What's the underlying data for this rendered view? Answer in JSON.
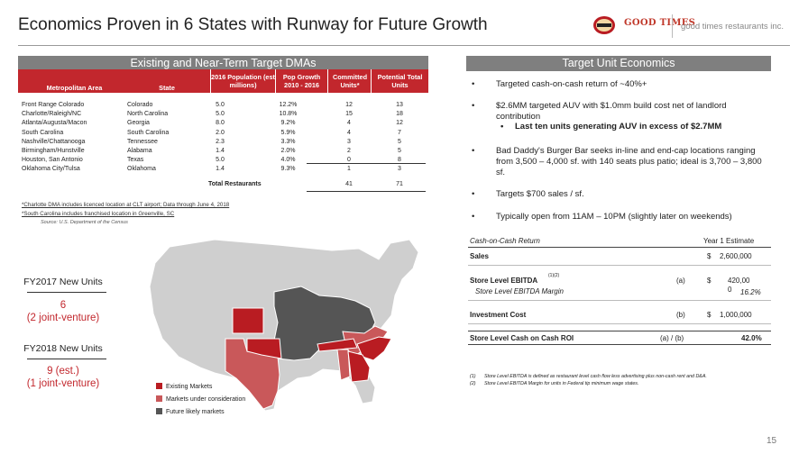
{
  "header": {
    "title": "Economics Proven in 6 States with Runway for Future Growth",
    "logo_primary": "GOOD TIMES",
    "company": "good times restaurants inc."
  },
  "dma_table": {
    "section_title": "Existing and Near-Term Target DMAs",
    "columns": [
      "Metropolitan Area",
      "State",
      "2016 Population (est millions)",
      "Pop Growth 2010 - 2016",
      "Committed Units*",
      "Potential Total Units"
    ],
    "rows": [
      {
        "area": "Front Range Colorado",
        "state": "Colorado",
        "population": "5.0",
        "growth": "12.2%",
        "committed": "12",
        "potential": "13"
      },
      {
        "area": "Charlotte/Raleigh/NC",
        "state": "North Carolina",
        "population": "5.0",
        "growth": "10.8%",
        "committed": "15",
        "potential": "18"
      },
      {
        "area": "Atlanta/Augusta/Macon",
        "state": "Georgia",
        "population": "8.0",
        "growth": "9.2%",
        "committed": "4",
        "potential": "12"
      },
      {
        "area": "South Carolina",
        "state": "South Carolina",
        "population": "2.0",
        "growth": "5.9%",
        "committed": "4",
        "potential": "7"
      },
      {
        "area": "Nashville/Chattanooga",
        "state": "Tennessee",
        "population": "2.3",
        "growth": "3.3%",
        "committed": "3",
        "potential": "5"
      },
      {
        "area": "Birmingham/Hunstville",
        "state": "Alabama",
        "population": "1.4",
        "growth": "2.0%",
        "committed": "2",
        "potential": "5"
      },
      {
        "area": "Houston, San Antonio",
        "state": "Texas",
        "population": "5.0",
        "growth": "4.0%",
        "committed": "0",
        "potential": "8"
      },
      {
        "area": "Oklahoma City/Tulsa",
        "state": "Oklahoma",
        "population": "1.4",
        "growth": "9.3%",
        "committed": "1",
        "potential": "3"
      }
    ],
    "total_label": "Total Restaurants",
    "total_committed": "41",
    "total_potential": "71",
    "footnote1": "*Charlotte  DMA includes licenced location at CLT airport; Data through June 4, 2018",
    "footnote2": "*South Carolina includes franchised location in Greenville, SC",
    "source": "Source: U.S. Department of the Census"
  },
  "fy": {
    "fy2017_label": "FY2017 New Units",
    "fy2017_value1": "6",
    "fy2017_value2": "(2 joint-venture)",
    "fy2018_label": "FY2018 New Units",
    "fy2018_value1": "9 (est.)",
    "fy2018_value2": "(1 joint-venture)"
  },
  "legend": {
    "existing": "Existing Markets",
    "consideration": "Markets under consideration",
    "future": "Future likely markets"
  },
  "colors": {
    "existing": "#b91c22",
    "consideration": "#c9585a",
    "future": "#555555",
    "other": "#cfcfcf",
    "header_bar": "#7f7f7f",
    "accent": "#c2272d"
  },
  "unit_economics": {
    "section_title": "Target Unit Economics",
    "bullet1": "Targeted cash-on-cash return of ~40%+",
    "bullet2": "$2.6MM targeted AUV with $1.0mm build cost net of landlord contribution",
    "bullet2_sub": "Last ten units generating AUV in excess of $2.7MM",
    "bullet3": "Bad Daddy's Burger Bar seeks in-line and end-cap locations ranging from 3,500 – 4,000 sf. with 140 seats plus patio; ideal is 3,700 – 3,800 sf.",
    "bullet4": "Targets $700 sales / sf.",
    "bullet5": "Typically open from 11AM – 10PM (slightly later on weekends)"
  },
  "coc_table": {
    "title": "Cash-on-Cash Return",
    "col_header": "Year 1 Estimate",
    "sales_label": "Sales",
    "sales_value": "2,600,000",
    "ebitda_label": "Store Level EBITDA",
    "ebitda_sup": "(1)(2)",
    "ebitda_ref": "(a)",
    "ebitda_value_line1": "420,00",
    "ebitda_value_line2": "0",
    "margin_label": "Store Level EBITDA Margin",
    "margin_value": "16.2%",
    "investment_label": "Investment Cost",
    "investment_ref": "(b)",
    "investment_value": "1,000,000",
    "roi_label": "Store Level Cash on Cash ROI",
    "roi_ref": "(a) / (b)",
    "roi_value": "42.0%",
    "currency": "$",
    "note1_num": "(1)",
    "note1": "Store Level EBITDA is defined as restaurant level cash flow less advertising plus non-cash rent and D&A.",
    "note2_num": "(2)",
    "note2": "Store Level EBITDA Margin for units in Federal tip minimum wage states."
  },
  "page_number": "15"
}
